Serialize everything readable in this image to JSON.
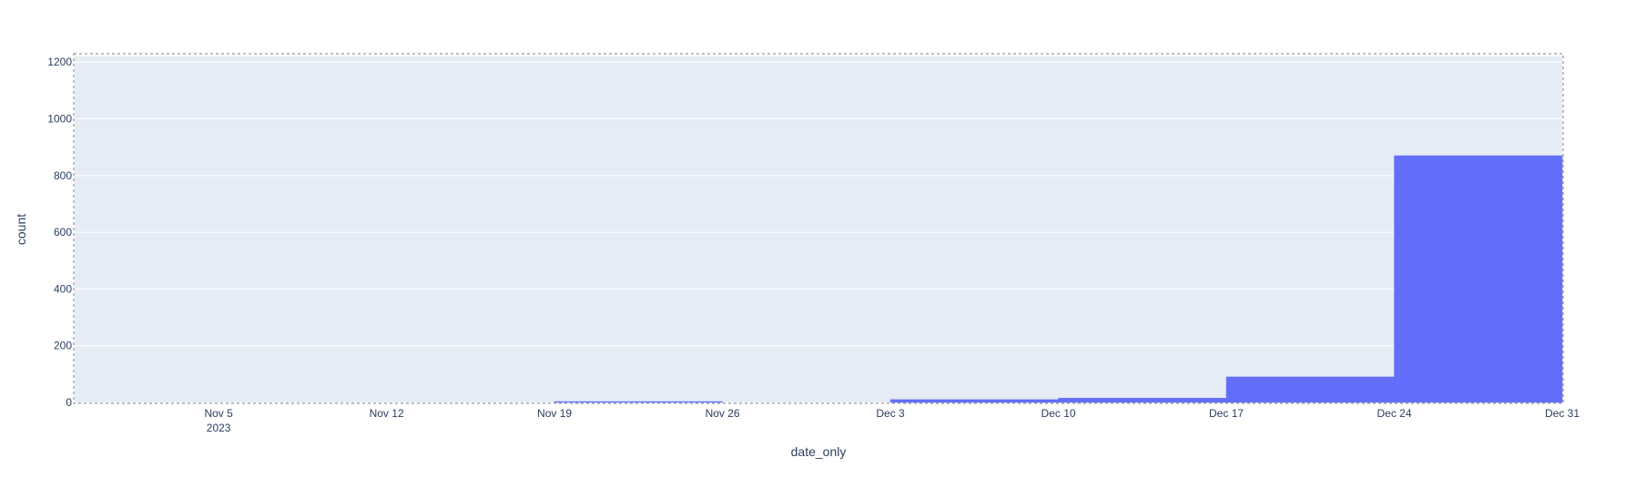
{
  "chart_data": {
    "type": "bar",
    "subtype": "histogram",
    "xlabel": "date_only",
    "ylabel": "count",
    "x_range": [
      "2023-10-30",
      "2023-12-31"
    ],
    "ylim": [
      0,
      1220
    ],
    "x_ticks": [
      {
        "date": "2023-11-05",
        "label": "Nov 5",
        "sublabel": "2023"
      },
      {
        "date": "2023-11-12",
        "label": "Nov 12"
      },
      {
        "date": "2023-11-19",
        "label": "Nov 19"
      },
      {
        "date": "2023-11-26",
        "label": "Nov 26"
      },
      {
        "date": "2023-12-03",
        "label": "Dec 3"
      },
      {
        "date": "2023-12-10",
        "label": "Dec 10"
      },
      {
        "date": "2023-12-17",
        "label": "Dec 17"
      },
      {
        "date": "2023-12-24",
        "label": "Dec 24"
      },
      {
        "date": "2023-12-31",
        "label": "Dec 31"
      }
    ],
    "y_ticks": [
      0,
      200,
      400,
      600,
      800,
      1000,
      1200
    ],
    "bins": [
      {
        "start": "2023-11-19",
        "end": "2023-11-26",
        "count": 3
      },
      {
        "start": "2023-12-03",
        "end": "2023-12-10",
        "count": 10
      },
      {
        "start": "2023-12-10",
        "end": "2023-12-17",
        "count": 15
      },
      {
        "start": "2023-12-17",
        "end": "2023-12-24",
        "count": 90
      },
      {
        "start": "2023-12-24",
        "end": "2023-12-31",
        "count": 870
      }
    ],
    "grid": true,
    "colors": {
      "bar": "#636efa",
      "plot_bg": "#e5ecf6",
      "grid": "#ffffff",
      "text": "#2a3f5f",
      "selection_outline": "#7f7f7f"
    }
  }
}
